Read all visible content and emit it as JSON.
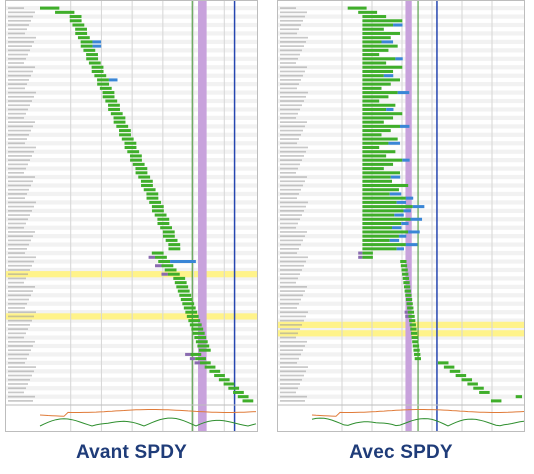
{
  "captions": {
    "left": "Avant SPDY",
    "right": "Avec SPDY"
  },
  "colors": {
    "bar": "#3fae2a",
    "bar_tail": "#3a86d6",
    "wait": "#8a6bb0",
    "ssl": "#c0c0c0",
    "event_band": "#c8a2dc",
    "dom_line": "#3a8f2a",
    "load_line": "#2646b0",
    "row_highlight": "#fff38a",
    "cpu_line": "#e07b39",
    "bandwidth_line": "#2f8f2f",
    "caption": "#1f3c79"
  },
  "panels": {
    "left": {
      "name": "avant-spdy",
      "requests": 94,
      "spdy": false
    },
    "right": {
      "name": "avec-spdy",
      "requests": 94,
      "spdy": true
    }
  }
}
